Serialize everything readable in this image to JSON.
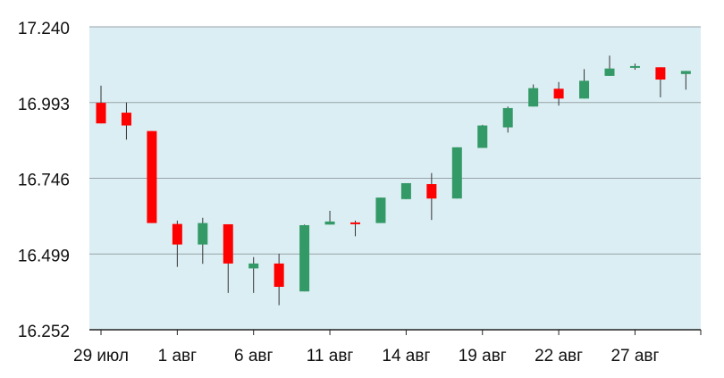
{
  "chart_data": {
    "type": "candlestick",
    "title": "",
    "xlabel": "",
    "ylabel": "",
    "ylim": [
      16.252,
      17.24
    ],
    "grid": true,
    "y_ticks": [
      "17.240",
      "16.993",
      "16.746",
      "16.499",
      "16.252"
    ],
    "x_ticks": [
      {
        "index": 0,
        "label": "29 июл"
      },
      {
        "index": 3,
        "label": "1 авг"
      },
      {
        "index": 6,
        "label": "6 авг"
      },
      {
        "index": 9,
        "label": "11 авг"
      },
      {
        "index": 12,
        "label": "14 авг"
      },
      {
        "index": 15,
        "label": "19 авг"
      },
      {
        "index": 18,
        "label": "22 авг"
      },
      {
        "index": 21,
        "label": "27 авг"
      }
    ],
    "colors": {
      "up": "#339966",
      "down": "#ff0000",
      "wick": "#333333",
      "plot_background": "#dbeef3",
      "grid": "#9aa3a8",
      "axis": "#222222"
    },
    "candles": [
      {
        "open": 16.992,
        "high": 17.048,
        "low": 16.925,
        "close": 16.925
      },
      {
        "open": 16.96,
        "high": 16.993,
        "low": 16.872,
        "close": 16.918
      },
      {
        "open": 16.9,
        "high": 16.9,
        "low": 16.6,
        "close": 16.6
      },
      {
        "open": 16.597,
        "high": 16.608,
        "low": 16.457,
        "close": 16.53
      },
      {
        "open": 16.53,
        "high": 16.617,
        "low": 16.467,
        "close": 16.6
      },
      {
        "open": 16.596,
        "high": 16.596,
        "low": 16.372,
        "close": 16.468
      },
      {
        "open": 16.452,
        "high": 16.489,
        "low": 16.372,
        "close": 16.468
      },
      {
        "open": 16.468,
        "high": 16.5,
        "low": 16.332,
        "close": 16.392
      },
      {
        "open": 16.377,
        "high": 16.595,
        "low": 16.377,
        "close": 16.593
      },
      {
        "open": 16.595,
        "high": 16.64,
        "low": 16.595,
        "close": 16.605
      },
      {
        "open": 16.602,
        "high": 16.608,
        "low": 16.557,
        "close": 16.598
      },
      {
        "open": 16.6,
        "high": 16.683,
        "low": 16.6,
        "close": 16.683
      },
      {
        "open": 16.678,
        "high": 16.73,
        "low": 16.678,
        "close": 16.73
      },
      {
        "open": 16.727,
        "high": 16.763,
        "low": 16.61,
        "close": 16.68
      },
      {
        "open": 16.68,
        "high": 16.847,
        "low": 16.68,
        "close": 16.847
      },
      {
        "open": 16.845,
        "high": 16.92,
        "low": 16.845,
        "close": 16.918
      },
      {
        "open": 16.912,
        "high": 16.98,
        "low": 16.895,
        "close": 16.975
      },
      {
        "open": 16.98,
        "high": 17.052,
        "low": 16.98,
        "close": 17.04
      },
      {
        "open": 17.038,
        "high": 17.06,
        "low": 16.983,
        "close": 17.006
      },
      {
        "open": 17.006,
        "high": 17.102,
        "low": 17.006,
        "close": 17.064
      },
      {
        "open": 17.08,
        "high": 17.146,
        "low": 17.08,
        "close": 17.104
      },
      {
        "open": 17.112,
        "high": 17.12,
        "low": 17.1,
        "close": 17.112
      },
      {
        "open": 17.108,
        "high": 17.108,
        "low": 17.01,
        "close": 17.068
      },
      {
        "open": 17.086,
        "high": 17.096,
        "low": 17.035,
        "close": 17.096
      }
    ]
  }
}
